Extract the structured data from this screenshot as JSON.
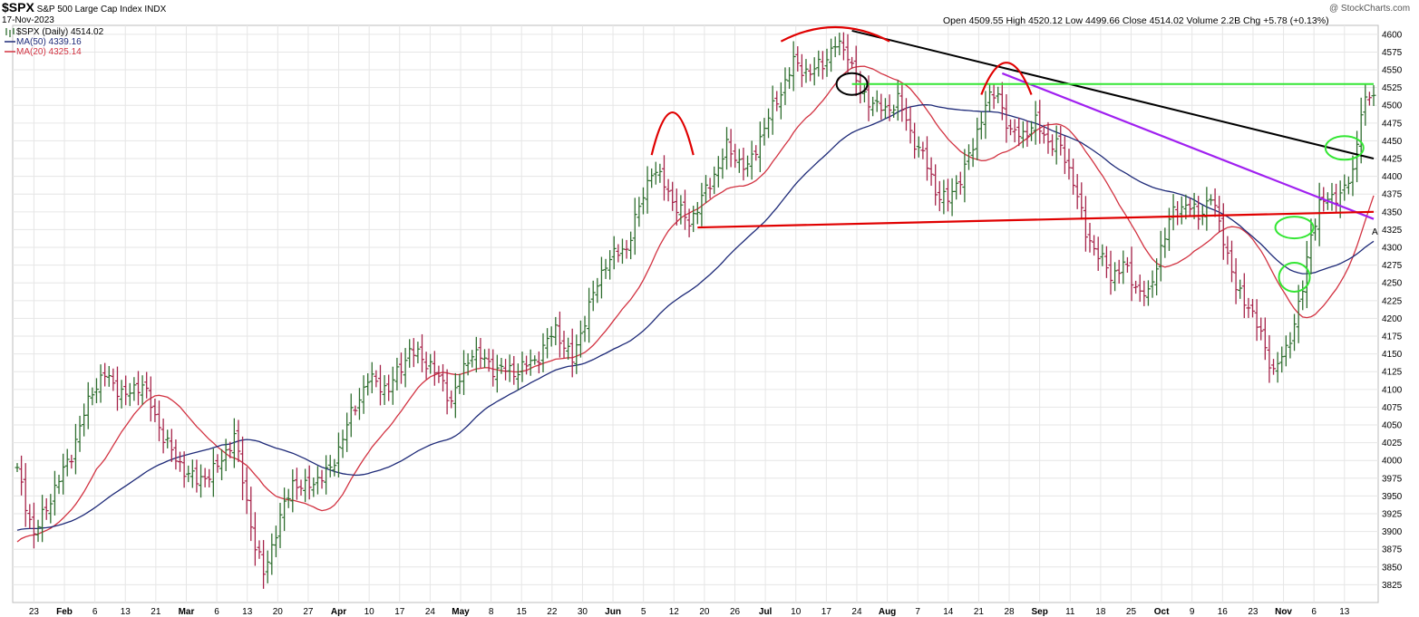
{
  "header": {
    "ticker": "$SPX",
    "name": "S&P 500 Large Cap Index",
    "exchange": "INDX",
    "date": "17-Nov-2023",
    "legend_main": "$SPX (Daily) 4514.02",
    "legend_ma50": "MA(50) 4339.16",
    "legend_ma20": "MA(20) 4325.14",
    "ohlc": "Open 4509.55  High 4520.12  Low 4499.66  Close 4514.02  Volume 2.2B  Chg +5.78 (+0.13%)",
    "watermark": "@ StockCharts.com",
    "last_marker": "A"
  },
  "colors": {
    "up_bar": "#2f6e2f",
    "down_bar": "#a6244a",
    "ma50": "#1e2a78",
    "ma20": "#d23241",
    "grid": "#e6e6e6",
    "resistance_green": "#33e633",
    "trend_purple": "#a020f0",
    "trend_black": "#000000",
    "support_red": "#e00000",
    "annot_red": "#e00000",
    "annot_green": "#33e633"
  },
  "chart_data": {
    "type": "ohlc",
    "title": "$SPX S&P 500 Large Cap Index INDX",
    "ylim": [
      3800,
      4610
    ],
    "yticks": [
      3825,
      3850,
      3875,
      3900,
      3925,
      3950,
      3975,
      4000,
      4025,
      4050,
      4075,
      4100,
      4125,
      4150,
      4175,
      4200,
      4225,
      4250,
      4275,
      4300,
      4325,
      4350,
      4375,
      4400,
      4425,
      4450,
      4475,
      4500,
      4525,
      4550,
      4575,
      4600
    ],
    "grid": true,
    "xticks": [
      {
        "label": "23",
        "bold": false
      },
      {
        "label": "Feb",
        "bold": true
      },
      {
        "label": "6",
        "bold": false
      },
      {
        "label": "13",
        "bold": false
      },
      {
        "label": "21",
        "bold": false
      },
      {
        "label": "Mar",
        "bold": true
      },
      {
        "label": "6",
        "bold": false
      },
      {
        "label": "13",
        "bold": false
      },
      {
        "label": "20",
        "bold": false
      },
      {
        "label": "27",
        "bold": false
      },
      {
        "label": "Apr",
        "bold": true
      },
      {
        "label": "10",
        "bold": false
      },
      {
        "label": "17",
        "bold": false
      },
      {
        "label": "24",
        "bold": false
      },
      {
        "label": "May",
        "bold": true
      },
      {
        "label": "8",
        "bold": false
      },
      {
        "label": "15",
        "bold": false
      },
      {
        "label": "22",
        "bold": false
      },
      {
        "label": "30",
        "bold": false
      },
      {
        "label": "Jun",
        "bold": true
      },
      {
        "label": "5",
        "bold": false
      },
      {
        "label": "12",
        "bold": false
      },
      {
        "label": "20",
        "bold": false
      },
      {
        "label": "26",
        "bold": false
      },
      {
        "label": "Jul",
        "bold": true
      },
      {
        "label": "10",
        "bold": false
      },
      {
        "label": "17",
        "bold": false
      },
      {
        "label": "24",
        "bold": false
      },
      {
        "label": "Aug",
        "bold": true
      },
      {
        "label": "7",
        "bold": false
      },
      {
        "label": "14",
        "bold": false
      },
      {
        "label": "21",
        "bold": false
      },
      {
        "label": "28",
        "bold": false
      },
      {
        "label": "Sep",
        "bold": true
      },
      {
        "label": "11",
        "bold": false
      },
      {
        "label": "18",
        "bold": false
      },
      {
        "label": "25",
        "bold": false
      },
      {
        "label": "Oct",
        "bold": true
      },
      {
        "label": "9",
        "bold": false
      },
      {
        "label": "16",
        "bold": false
      },
      {
        "label": "23",
        "bold": false
      },
      {
        "label": "Nov",
        "bold": true
      },
      {
        "label": "6",
        "bold": false
      },
      {
        "label": "13",
        "bold": false
      }
    ],
    "anchors": [
      {
        "t": 0,
        "p": 3985
      },
      {
        "t": 4,
        "p": 3895
      },
      {
        "t": 9,
        "p": 3960
      },
      {
        "t": 13,
        "p": 4010
      },
      {
        "t": 18,
        "p": 4100
      },
      {
        "t": 21,
        "p": 4120
      },
      {
        "t": 26,
        "p": 4090
      },
      {
        "t": 30,
        "p": 4110
      },
      {
        "t": 33,
        "p": 4060
      },
      {
        "t": 38,
        "p": 4000
      },
      {
        "t": 43,
        "p": 3970
      },
      {
        "t": 48,
        "p": 3990
      },
      {
        "t": 52,
        "p": 4035
      },
      {
        "t": 57,
        "p": 3880
      },
      {
        "t": 59,
        "p": 3840
      },
      {
        "t": 62,
        "p": 3900
      },
      {
        "t": 66,
        "p": 3970
      },
      {
        "t": 69,
        "p": 3960
      },
      {
        "t": 72,
        "p": 3975
      },
      {
        "t": 75,
        "p": 3985
      },
      {
        "t": 79,
        "p": 4050
      },
      {
        "t": 84,
        "p": 4115
      },
      {
        "t": 89,
        "p": 4100
      },
      {
        "t": 94,
        "p": 4155
      },
      {
        "t": 99,
        "p": 4135
      },
      {
        "t": 104,
        "p": 4085
      },
      {
        "t": 109,
        "p": 4155
      },
      {
        "t": 114,
        "p": 4130
      },
      {
        "t": 119,
        "p": 4125
      },
      {
        "t": 124,
        "p": 4140
      },
      {
        "t": 129,
        "p": 4185
      },
      {
        "t": 133,
        "p": 4140
      },
      {
        "t": 136,
        "p": 4200
      },
      {
        "t": 141,
        "p": 4280
      },
      {
        "t": 146,
        "p": 4300
      },
      {
        "t": 152,
        "p": 4410
      },
      {
        "t": 155,
        "p": 4390
      },
      {
        "t": 158,
        "p": 4355
      },
      {
        "t": 161,
        "p": 4335
      },
      {
        "t": 166,
        "p": 4390
      },
      {
        "t": 170,
        "p": 4440
      },
      {
        "t": 175,
        "p": 4410
      },
      {
        "t": 179,
        "p": 4470
      },
      {
        "t": 183,
        "p": 4520
      },
      {
        "t": 186,
        "p": 4560
      },
      {
        "t": 190,
        "p": 4545
      },
      {
        "t": 193,
        "p": 4560
      },
      {
        "t": 196,
        "p": 4585
      },
      {
        "t": 199,
        "p": 4575
      },
      {
        "t": 202,
        "p": 4515
      },
      {
        "t": 205,
        "p": 4505
      },
      {
        "t": 208,
        "p": 4490
      },
      {
        "t": 211,
        "p": 4510
      },
      {
        "t": 214,
        "p": 4460
      },
      {
        "t": 217,
        "p": 4430
      },
      {
        "t": 220,
        "p": 4380
      },
      {
        "t": 223,
        "p": 4365
      },
      {
        "t": 226,
        "p": 4400
      },
      {
        "t": 229,
        "p": 4440
      },
      {
        "t": 232,
        "p": 4505
      },
      {
        "t": 235,
        "p": 4515
      },
      {
        "t": 238,
        "p": 4460
      },
      {
        "t": 241,
        "p": 4460
      },
      {
        "t": 244,
        "p": 4475
      },
      {
        "t": 247,
        "p": 4450
      },
      {
        "t": 250,
        "p": 4440
      },
      {
        "t": 253,
        "p": 4395
      },
      {
        "t": 256,
        "p": 4320
      },
      {
        "t": 259,
        "p": 4290
      },
      {
        "t": 262,
        "p": 4260
      },
      {
        "t": 265,
        "p": 4275
      },
      {
        "t": 268,
        "p": 4245
      },
      {
        "t": 271,
        "p": 4230
      },
      {
        "t": 274,
        "p": 4300
      },
      {
        "t": 277,
        "p": 4350
      },
      {
        "t": 280,
        "p": 4360
      },
      {
        "t": 283,
        "p": 4345
      },
      {
        "t": 286,
        "p": 4370
      },
      {
        "t": 289,
        "p": 4315
      },
      {
        "t": 292,
        "p": 4240
      },
      {
        "t": 295,
        "p": 4220
      },
      {
        "t": 298,
        "p": 4175
      },
      {
        "t": 301,
        "p": 4125
      },
      {
        "t": 304,
        "p": 4155
      },
      {
        "t": 306,
        "p": 4195
      },
      {
        "t": 308,
        "p": 4240
      },
      {
        "t": 310,
        "p": 4320
      },
      {
        "t": 312,
        "p": 4360
      },
      {
        "t": 315,
        "p": 4370
      },
      {
        "t": 318,
        "p": 4380
      },
      {
        "t": 320,
        "p": 4405
      },
      {
        "t": 322,
        "p": 4495
      },
      {
        "t": 324,
        "p": 4510
      },
      {
        "t": 325,
        "p": 4514
      }
    ]
  }
}
